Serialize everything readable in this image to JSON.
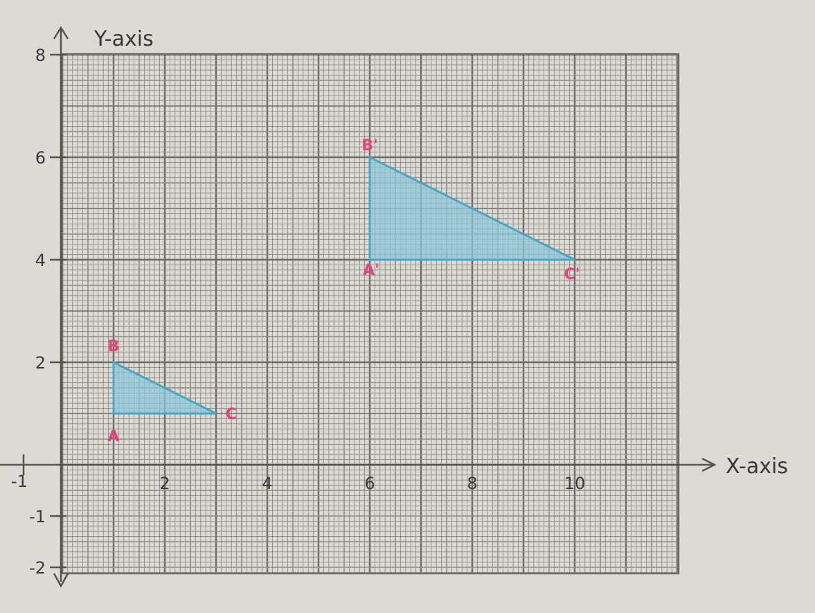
{
  "colors": {
    "paper": "#dcdad5",
    "grid_minor": "#8b8781",
    "grid_major": "#6e6a65",
    "axis": "#55514d",
    "triangle_fill": "#8cc6d8",
    "triangle_stroke": "#4aa6c6",
    "point_label": "#e0457e"
  },
  "axes": {
    "x_label": "X-axis",
    "y_label": "Y-axis",
    "x_ticks": [
      {
        "value": -1,
        "label": "-1"
      },
      {
        "value": 2,
        "label": "2"
      },
      {
        "value": 4,
        "label": "4"
      },
      {
        "value": 6,
        "label": "6"
      },
      {
        "value": 8,
        "label": "8"
      },
      {
        "value": 10,
        "label": "10"
      }
    ],
    "y_ticks": [
      {
        "value": 8,
        "label": "8"
      },
      {
        "value": 6,
        "label": "6"
      },
      {
        "value": 4,
        "label": "4"
      },
      {
        "value": 2,
        "label": "2"
      },
      {
        "value": -1,
        "label": "-1"
      },
      {
        "value": -2,
        "label": "-2"
      }
    ]
  },
  "triangles": [
    {
      "name": "ABC",
      "points": [
        {
          "label": "A",
          "x": 1,
          "y": 1
        },
        {
          "label": "B",
          "x": 1,
          "y": 2
        },
        {
          "label": "C",
          "x": 3,
          "y": 1
        }
      ]
    },
    {
      "name": "A'B'C'",
      "points": [
        {
          "label": "A'",
          "x": 6,
          "y": 4
        },
        {
          "label": "B'",
          "x": 6,
          "y": 6
        },
        {
          "label": "C'",
          "x": 10,
          "y": 4
        }
      ]
    }
  ]
}
